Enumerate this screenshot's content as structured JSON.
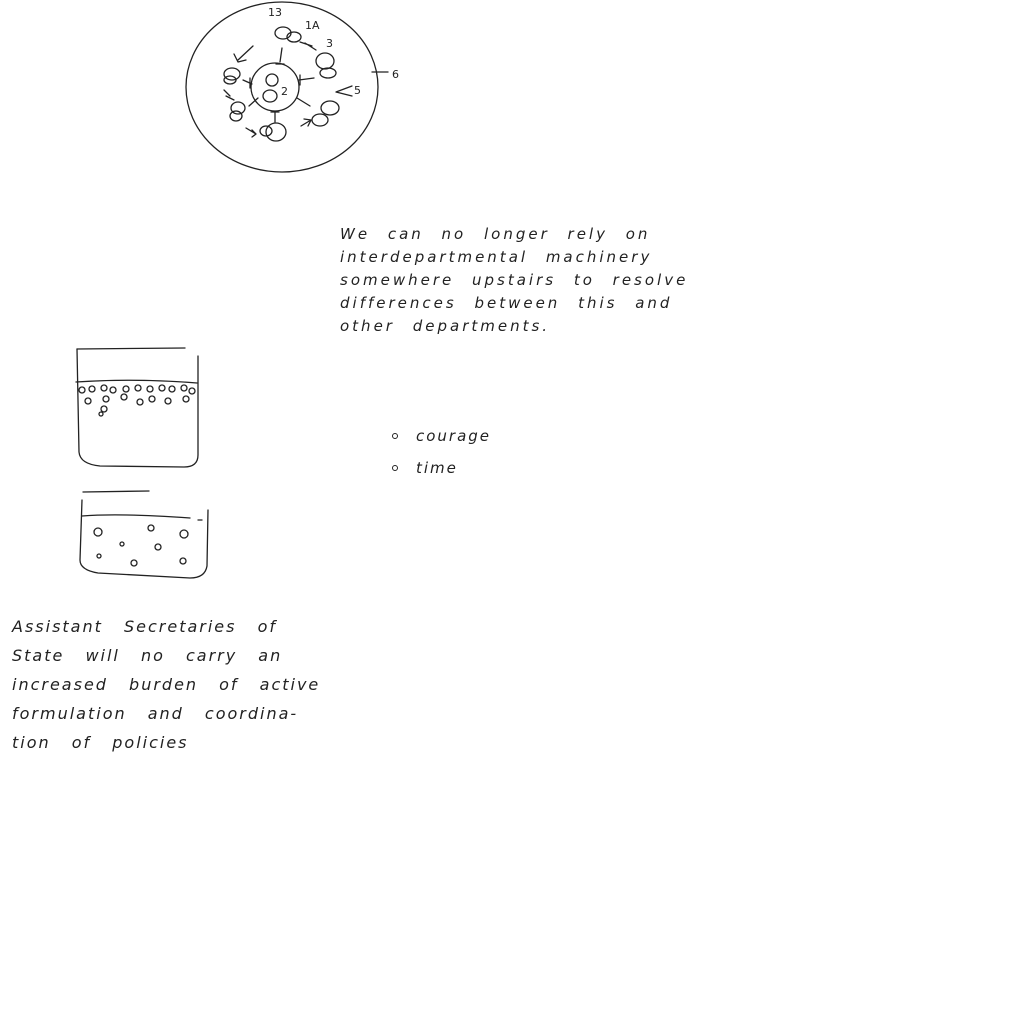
{
  "diagram": {
    "labels": [
      "13",
      "1A",
      "3",
      "6",
      "5",
      "2"
    ]
  },
  "notes": {
    "top": "We can no longer rely on\ninterdepartmental machinery\nsomewhere upstairs to resolve\ndifferences between this and\nother departments.",
    "bullets": [
      "courage",
      "time"
    ],
    "bottom": "Assistant Secretaries of\nState will no carry an\nincreased burden of active\nformulation and coordina-\ntion of policies"
  }
}
